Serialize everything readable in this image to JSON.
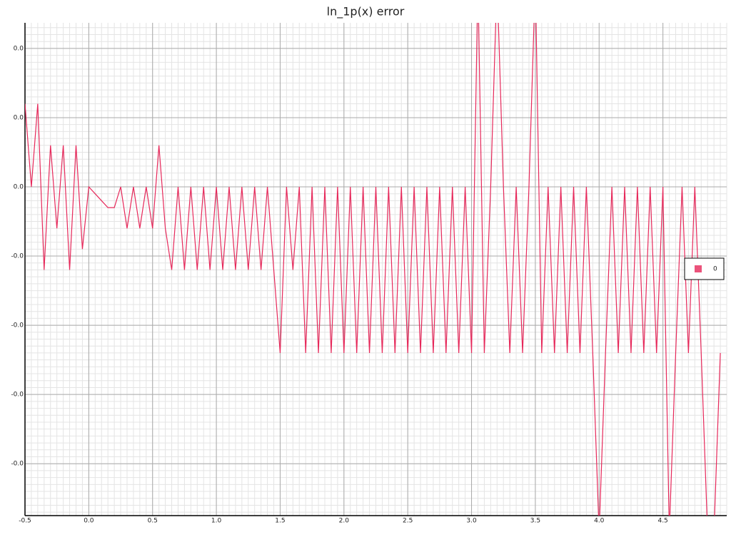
{
  "chart_data": {
    "type": "line",
    "title": "ln_1p(x) error",
    "x": [
      -0.5,
      -0.45,
      -0.4,
      -0.35,
      -0.3,
      -0.25,
      -0.2,
      -0.15,
      -0.1,
      -0.05,
      0,
      0.05,
      0.1,
      0.15,
      0.2,
      0.25,
      0.3,
      0.35,
      0.4,
      0.45,
      0.5,
      0.55,
      0.6,
      0.65,
      0.7,
      0.75,
      0.8,
      0.85,
      0.9,
      0.95,
      1,
      1.05,
      1.1,
      1.15,
      1.2,
      1.25,
      1.3,
      1.35,
      1.4,
      1.45,
      1.5,
      1.55,
      1.6,
      1.65,
      1.7,
      1.75,
      1.8,
      1.85,
      1.9,
      1.95,
      2,
      2.05,
      2.1,
      2.15,
      2.2,
      2.25,
      2.3,
      2.35,
      2.4,
      2.45,
      2.5,
      2.55,
      2.6,
      2.65,
      2.7,
      2.75,
      2.8,
      2.85,
      2.9,
      2.95,
      3,
      3.05,
      3.1,
      3.15,
      3.2,
      3.25,
      3.3,
      3.35,
      3.4,
      3.45,
      3.5,
      3.55,
      3.6,
      3.65,
      3.7,
      3.75,
      3.8,
      3.85,
      3.9,
      3.95,
      4,
      4.05,
      4.1,
      4.15,
      4.2,
      4.25,
      4.3,
      4.35,
      4.4,
      4.45,
      4.5,
      4.55,
      4.6,
      4.65,
      4.7,
      4.75,
      4.8,
      4.85,
      4.9,
      4.95
    ],
    "series": [
      {
        "name": "0",
        "color": "#e6285a",
        "values": [
          1.2e-16,
          0,
          1.2e-16,
          -1.2e-16,
          6e-17,
          -6e-17,
          6e-17,
          -1.2e-16,
          6e-17,
          -9e-17,
          0,
          -1e-17,
          -2e-17,
          -3e-17,
          -3e-17,
          0,
          -6e-17,
          0,
          -6e-17,
          0,
          -6e-17,
          6e-17,
          -6e-17,
          -1.2e-16,
          0,
          -1.2e-16,
          0,
          -1.2e-16,
          0,
          -1.2e-16,
          0,
          -1.2e-16,
          0,
          -1.2e-16,
          0,
          -1.2e-16,
          0,
          -1.2e-16,
          0,
          -1.2e-16,
          -2.4e-16,
          0,
          -1.2e-16,
          0,
          -2.4e-16,
          0,
          -2.4e-16,
          0,
          -2.4e-16,
          0,
          -2.4e-16,
          0,
          -2.4e-16,
          0,
          -2.4e-16,
          0,
          -2.4e-16,
          0,
          -2.4e-16,
          0,
          -2.4e-16,
          0,
          -2.4e-16,
          0,
          -2.4e-16,
          0,
          -2.4e-16,
          0,
          -2.4e-16,
          0,
          -2.4e-16,
          3e-16,
          -2.4e-16,
          0,
          3e-16,
          0,
          -2.4e-16,
          0,
          -2.4e-16,
          0,
          3e-16,
          -2.4e-16,
          0,
          -2.4e-16,
          0,
          -2.4e-16,
          0,
          -2.4e-16,
          0,
          -2.4e-16,
          -5e-16,
          -2.4e-16,
          0,
          -2.4e-16,
          0,
          -2.4e-16,
          0,
          -2.4e-16,
          0,
          -2.4e-16,
          0,
          -5e-16,
          -2.4e-16,
          0,
          -2.4e-16,
          0,
          -2.4e-16,
          -5e-16,
          -5e-16,
          -2.4e-16
        ]
      }
    ],
    "xlim": [
      -0.5,
      5.0
    ],
    "xticks": [
      -0.5,
      {
        "value": 0,
        "label": "0.0"
      },
      0.5,
      {
        "value": 1,
        "label": "1.0"
      },
      1.5,
      {
        "value": 2,
        "label": "2.0"
      },
      2.5,
      {
        "value": 3,
        "label": "3.0"
      },
      3.5,
      {
        "value": 4,
        "label": "4.0"
      },
      4.5
    ],
    "ylim": [
      -4.75e-16,
      2.37e-16
    ],
    "yticks": [
      {
        "value": 2e-16,
        "label": "0.0"
      },
      {
        "value": 1e-16,
        "label": "0.0"
      },
      {
        "value": 0,
        "label": "0.0"
      },
      {
        "value": -1e-16,
        "label": "-0.0"
      },
      {
        "value": -2e-16,
        "label": "-0.0"
      },
      {
        "value": -3e-16,
        "label": "-0.0"
      },
      {
        "value": -4e-16,
        "label": "-0.0"
      }
    ],
    "grid": true,
    "legend": "right"
  }
}
